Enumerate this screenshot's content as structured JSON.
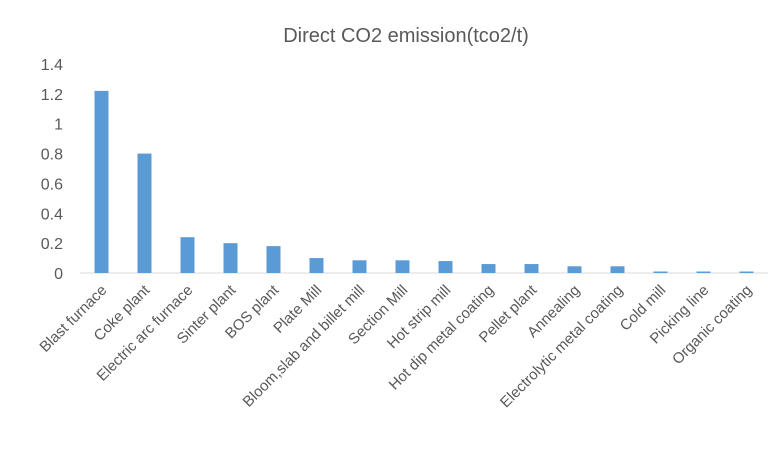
{
  "chart_data": {
    "type": "bar",
    "title": "Direct CO2 emission(tco2/t)",
    "xlabel": "",
    "ylabel": "",
    "ylim": [
      0,
      1.4
    ],
    "yticks": [
      "0",
      "0.2",
      "0.4",
      "0.6",
      "0.8",
      "1",
      "1.2",
      "1.4"
    ],
    "grid": false,
    "legend": "none",
    "bar_color": "#5b9bd5",
    "categories": [
      "Blast furnace",
      "Coke plant",
      "Electric arc furnace",
      "Sinter plant",
      "BOS plant",
      "Plate Mill",
      "Bloom,slab and billet mill",
      "Section Mill",
      "Hot strip mill",
      "Hot dip metal coating",
      "Pellet plant",
      "Annealing",
      "Electrolytic metal coating",
      "Cold mill",
      "Picking line",
      "Organic coating"
    ],
    "values": [
      1.22,
      0.8,
      0.24,
      0.2,
      0.18,
      0.1,
      0.085,
      0.085,
      0.08,
      0.06,
      0.06,
      0.045,
      0.045,
      0.01,
      0.01,
      0.01
    ]
  }
}
